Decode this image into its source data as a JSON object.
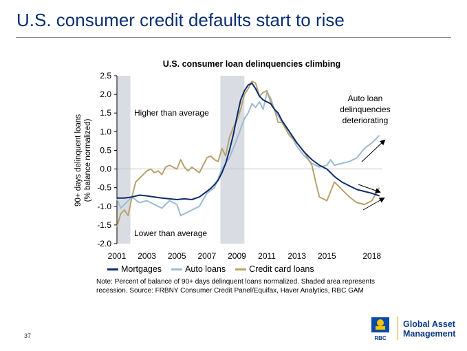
{
  "slide": {
    "title": "U.S. consumer credit defaults start to rise",
    "page_number": "37",
    "note": "Note: Percent of balance of 90+ days delinquent loans normalized. Shaded area represents recession. Source: FRBNY Consumer Credit Panel/Equifax, Haver Analytics, RBC GAM",
    "logo": {
      "brand": "RBC",
      "line1": "Global Asset",
      "line2": "Management"
    }
  },
  "chart_data": {
    "type": "line",
    "title": "U.S. consumer loan delinquencies climbing",
    "ylabel_line1": "90+ days delinquent loans",
    "ylabel_line2": "(% balance normalized)",
    "xlim": [
      2001,
      2018.7
    ],
    "ylim": [
      -2.0,
      2.5
    ],
    "yticks": [
      -2.0,
      -1.5,
      -1.0,
      -0.5,
      0.0,
      0.5,
      1.0,
      1.5,
      2.0,
      2.5
    ],
    "ytick_labels": [
      "-2.0",
      "-1.5",
      "-1.0",
      "-0.5",
      "0.0",
      "0.5",
      "1.0",
      "1.5",
      "2.0",
      "2.5"
    ],
    "xticks": [
      2001,
      2003,
      2005,
      2007,
      2009,
      2011,
      2013,
      2015,
      2018
    ],
    "xtick_labels": [
      "2001",
      "2003",
      "2005",
      "2007",
      "2009",
      "2011",
      "2013",
      "2015",
      "2018"
    ],
    "recessions": [
      [
        2001.0,
        2001.9
      ],
      [
        2007.9,
        2009.5
      ]
    ],
    "annotations": {
      "higher": "Higher than average",
      "lower": "Lower than average",
      "auto_line1": "Auto loan",
      "auto_line2": "delinquencies",
      "auto_line3": "deteriorating"
    },
    "colors": {
      "mortgages": "#0b2b6b",
      "auto": "#9cbad3",
      "credit": "#b9a16b",
      "recession": "#d9dde3"
    },
    "series": [
      {
        "name": "Mortgages",
        "key": "mortgages",
        "x": [
          2001.0,
          2001.5,
          2002.0,
          2002.5,
          2003.0,
          2003.5,
          2004.0,
          2004.5,
          2005.0,
          2005.5,
          2006.0,
          2006.5,
          2007.0,
          2007.25,
          2007.5,
          2007.75,
          2008.0,
          2008.25,
          2008.5,
          2008.75,
          2009.0,
          2009.25,
          2009.5,
          2009.75,
          2010.0,
          2010.25,
          2010.5,
          2010.75,
          2011.0,
          2011.25,
          2011.5,
          2011.75,
          2012.0,
          2012.5,
          2013.0,
          2013.5,
          2014.0,
          2014.5,
          2015.0,
          2015.5,
          2016.0,
          2016.5,
          2017.0,
          2017.5,
          2018.0,
          2018.5
        ],
        "values": [
          -0.78,
          -0.78,
          -0.75,
          -0.7,
          -0.72,
          -0.75,
          -0.78,
          -0.8,
          -0.82,
          -0.8,
          -0.82,
          -0.75,
          -0.6,
          -0.52,
          -0.42,
          -0.3,
          -0.1,
          0.15,
          0.5,
          0.9,
          1.4,
          1.85,
          2.1,
          2.25,
          2.3,
          2.15,
          1.95,
          1.85,
          1.8,
          1.75,
          1.6,
          1.5,
          1.3,
          1.0,
          0.7,
          0.45,
          0.25,
          0.1,
          0.0,
          -0.2,
          -0.35,
          -0.45,
          -0.55,
          -0.6,
          -0.65,
          -0.72
        ]
      },
      {
        "name": "Auto loans",
        "key": "auto",
        "x": [
          2001.0,
          2001.25,
          2001.5,
          2002.0,
          2002.5,
          2003.0,
          2003.5,
          2004.0,
          2004.5,
          2005.0,
          2005.25,
          2005.5,
          2006.0,
          2006.5,
          2007.0,
          2007.5,
          2008.0,
          2008.5,
          2009.0,
          2009.5,
          2009.75,
          2010.0,
          2010.25,
          2010.5,
          2010.75,
          2011.0,
          2011.25,
          2011.5,
          2012.0,
          2012.5,
          2013.0,
          2013.5,
          2014.0,
          2014.5,
          2015.0,
          2015.25,
          2015.5,
          2016.0,
          2016.5,
          2017.0,
          2017.5,
          2018.0,
          2018.5
        ],
        "values": [
          -0.8,
          -1.05,
          -0.95,
          -0.75,
          -0.9,
          -0.85,
          -0.95,
          -1.05,
          -0.85,
          -0.95,
          -1.25,
          -1.2,
          -1.1,
          -1.0,
          -0.65,
          -0.5,
          0.0,
          0.3,
          0.8,
          1.35,
          1.5,
          1.75,
          1.65,
          1.8,
          1.6,
          2.05,
          1.9,
          1.6,
          1.25,
          1.0,
          0.6,
          0.35,
          0.15,
          0.05,
          0.1,
          0.25,
          0.1,
          0.15,
          0.2,
          0.3,
          0.55,
          0.7,
          0.9
        ]
      },
      {
        "name": "Credit card loans",
        "key": "credit",
        "x": [
          2001.0,
          2001.25,
          2001.5,
          2001.75,
          2002.0,
          2002.25,
          2002.5,
          2003.0,
          2003.25,
          2003.5,
          2003.75,
          2004.0,
          2004.25,
          2004.5,
          2005.0,
          2005.25,
          2005.5,
          2005.75,
          2006.0,
          2006.5,
          2007.0,
          2007.25,
          2007.5,
          2007.75,
          2008.0,
          2008.25,
          2008.5,
          2008.75,
          2009.0,
          2009.25,
          2009.5,
          2009.75,
          2010.0,
          2010.25,
          2010.5,
          2010.75,
          2011.0,
          2011.25,
          2011.5,
          2011.75,
          2012.0,
          2012.5,
          2013.0,
          2013.5,
          2014.0,
          2014.25,
          2014.5,
          2015.0,
          2015.5,
          2016.0,
          2016.5,
          2017.0,
          2017.5,
          2018.0,
          2018.5
        ],
        "values": [
          -1.55,
          -1.2,
          -1.1,
          -1.25,
          -0.75,
          -0.35,
          -0.25,
          -0.05,
          0.0,
          -0.1,
          -0.05,
          -0.15,
          0.05,
          0.1,
          0.0,
          0.25,
          0.05,
          -0.05,
          0.05,
          -0.1,
          0.3,
          0.35,
          0.25,
          0.2,
          0.55,
          0.35,
          0.85,
          1.1,
          1.3,
          1.6,
          2.0,
          2.15,
          2.35,
          2.3,
          1.95,
          2.05,
          2.1,
          1.8,
          1.6,
          1.25,
          1.25,
          0.9,
          0.7,
          0.45,
          0.1,
          -0.35,
          -0.75,
          -0.85,
          -0.35,
          -0.55,
          -0.75,
          -0.9,
          -0.95,
          -0.85,
          -0.5
        ]
      }
    ]
  }
}
